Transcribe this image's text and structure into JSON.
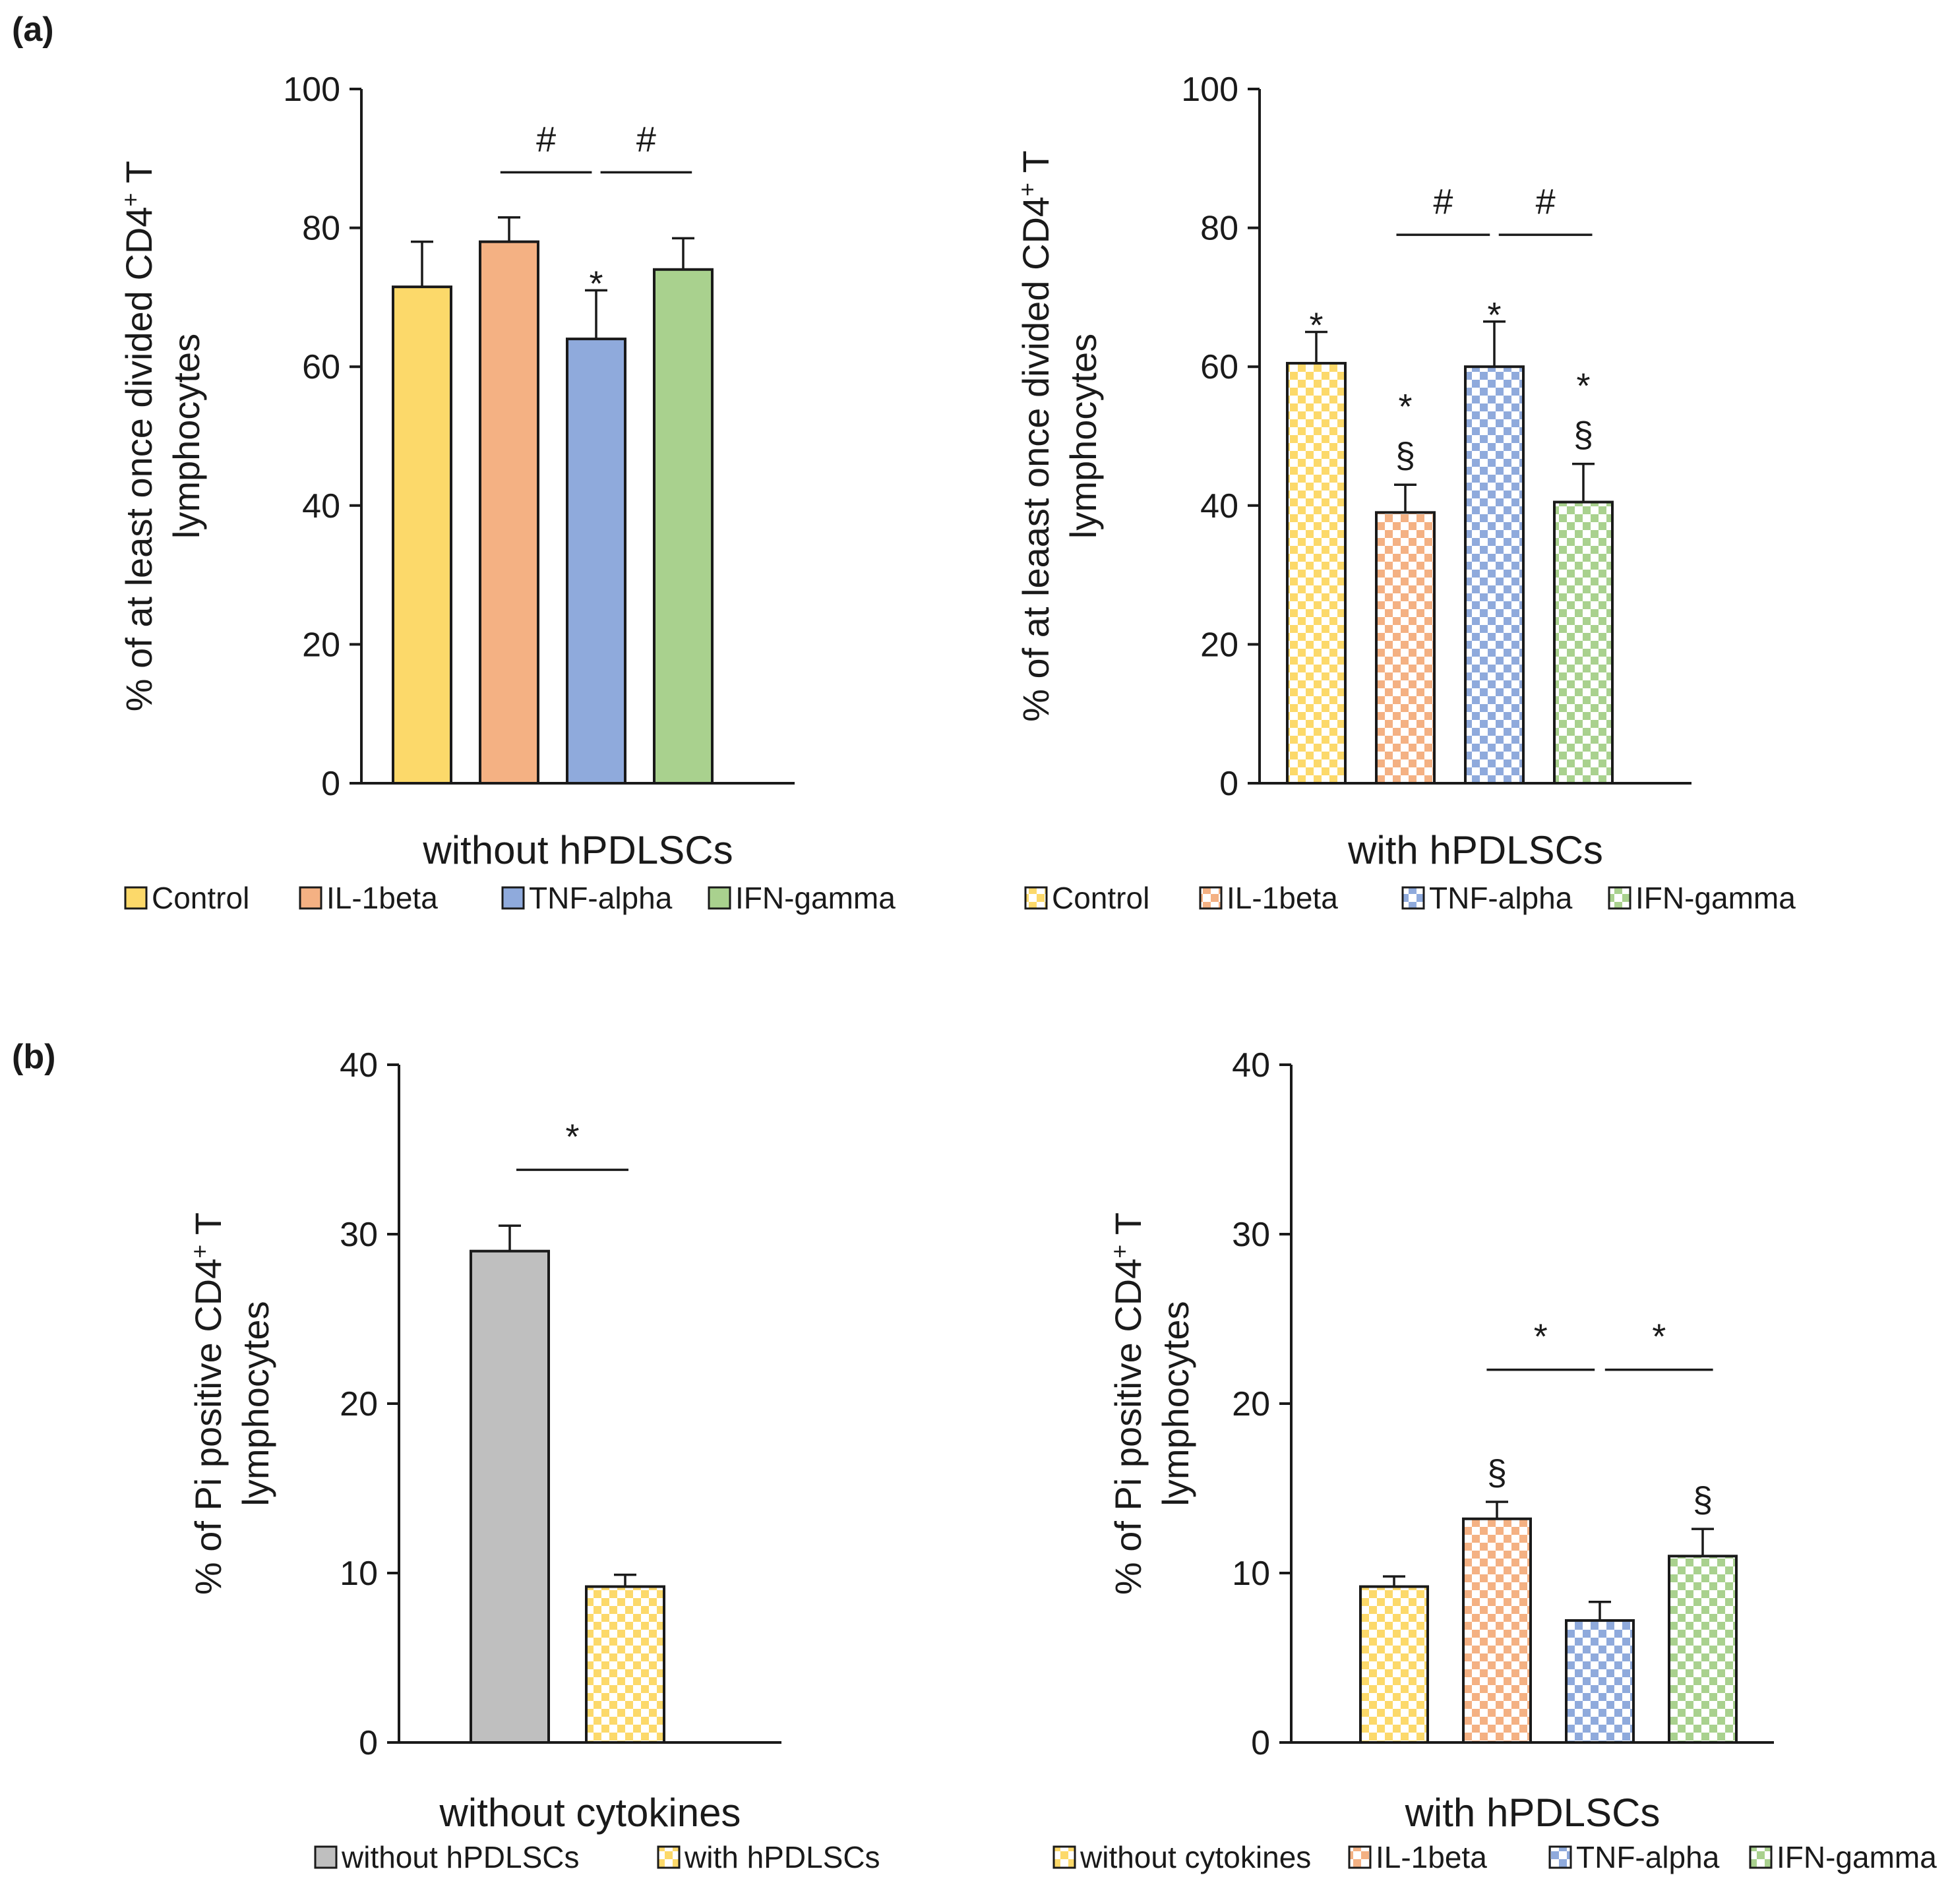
{
  "figure": {
    "panel_a_label": "(a)",
    "panel_b_label": "(b)"
  },
  "colors": {
    "Control": "#fcd96a",
    "IL-1beta": "#f4b183",
    "TNF-alpha": "#8faadc",
    "IFN-gamma": "#a9d18e",
    "without hPDLSCs": "#bfbfbf",
    "axis": "#1a1a1a"
  },
  "chart_data": [
    {
      "id": "a_left",
      "type": "bar",
      "pattern": "solid",
      "title": "",
      "xlabel": "without hPDLSCs",
      "ylabel_line1": "% of at least once divided CD4",
      "ylabel_sup": "+",
      "ylabel_line1_tail": " T",
      "ylabel_line2": "lymphocytes",
      "ylim": [
        0,
        100
      ],
      "yticks": [
        0,
        20,
        40,
        60,
        80,
        100
      ],
      "categories": [
        "Control",
        "IL-1beta",
        "TNF-alpha",
        "IFN-gamma"
      ],
      "values": [
        71.5,
        78,
        64,
        74
      ],
      "errors": [
        6.5,
        3.5,
        7,
        4.5
      ],
      "marks": [
        "",
        "",
        "*",
        ""
      ],
      "brackets": [
        {
          "from": 1,
          "to": 2,
          "level": 88,
          "label": "#"
        },
        {
          "from": 2,
          "to": 3,
          "level": 88,
          "label": "#"
        }
      ],
      "legend": [
        "Control",
        "IL-1beta",
        "TNF-alpha",
        "IFN-gamma"
      ]
    },
    {
      "id": "a_right",
      "type": "bar",
      "pattern": "checker",
      "title": "",
      "xlabel": "with hPDLSCs",
      "ylabel_line1": "% of at leaast once divided CD4",
      "ylabel_sup": "+",
      "ylabel_line1_tail": " T",
      "ylabel_line2": "lymphocytes",
      "ylim": [
        0,
        100
      ],
      "yticks": [
        0,
        20,
        40,
        60,
        80,
        100
      ],
      "categories": [
        "Control",
        "IL-1beta",
        "TNF-alpha",
        "IFN-gamma"
      ],
      "values": [
        60.5,
        39,
        60,
        40.5
      ],
      "errors": [
        4.5,
        4,
        6.5,
        5.5
      ],
      "marks": [
        "*",
        "*\n§",
        "*",
        "*\n§"
      ],
      "brackets": [
        {
          "from": 1,
          "to": 2,
          "level": 79,
          "label": "#"
        },
        {
          "from": 2,
          "to": 3,
          "level": 79,
          "label": "#"
        }
      ],
      "legend": [
        "Control",
        "IL-1beta",
        "TNF-alpha",
        "IFN-gamma"
      ]
    },
    {
      "id": "b_left",
      "type": "bar",
      "pattern": "mixed",
      "title": "",
      "xlabel": "without cytokines",
      "ylabel_line1": "% of Pi positive CD4",
      "ylabel_sup": "+",
      "ylabel_line1_tail": " T",
      "ylabel_line2": "lymphocytes",
      "ylim": [
        0,
        40
      ],
      "yticks": [
        0,
        10,
        20,
        30,
        40
      ],
      "categories": [
        "without hPDLSCs",
        "with hPDLSCs"
      ],
      "values": [
        29,
        9.2
      ],
      "errors": [
        1.5,
        0.7
      ],
      "marks": [
        "",
        ""
      ],
      "brackets": [
        {
          "from": 0,
          "to": 1,
          "level": 33.8,
          "label": "*"
        }
      ],
      "legend": [
        "without hPDLSCs",
        "with hPDLSCs"
      ]
    },
    {
      "id": "b_right",
      "type": "bar",
      "pattern": "checker",
      "title": "",
      "xlabel": "with hPDLSCs",
      "ylabel_line1": "% of Pi positive CD4",
      "ylabel_sup": "+",
      "ylabel_line1_tail": " T",
      "ylabel_line2": "lymphocytes",
      "ylim": [
        0,
        40
      ],
      "yticks": [
        0,
        10,
        20,
        30,
        40
      ],
      "categories": [
        "without cytokines",
        "IL-1beta",
        "TNF-alpha",
        "IFN-gamma"
      ],
      "values": [
        9.2,
        13.2,
        7.2,
        11
      ],
      "errors": [
        0.6,
        1,
        1.1,
        1.6
      ],
      "marks": [
        "",
        "§",
        "",
        "§"
      ],
      "brackets": [
        {
          "from": 1,
          "to": 2,
          "level": 22,
          "label": "*"
        },
        {
          "from": 2,
          "to": 3,
          "level": 22,
          "label": "*"
        }
      ],
      "legend": [
        "without cytokines",
        "IL-1beta",
        "TNF-alpha",
        "IFN-gamma"
      ]
    }
  ]
}
